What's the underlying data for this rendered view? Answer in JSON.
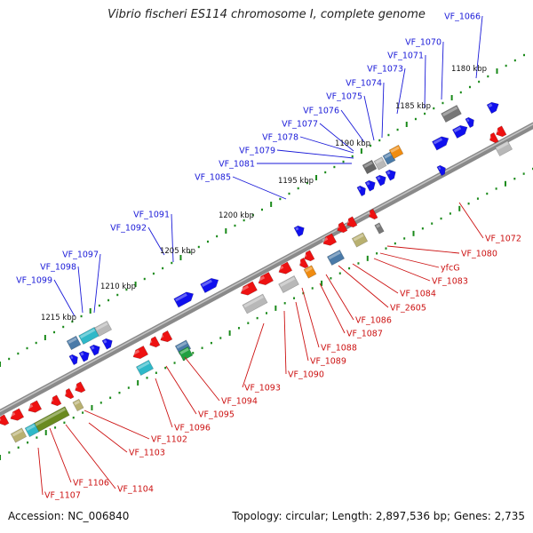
{
  "title": "Vibrio fischeri ES114 chromosome I, complete genome",
  "footer": {
    "accession": "Accession: NC_006840",
    "summary": "Topology: circular; Length: 2,897,536 bp; Genes: 2,735"
  },
  "ruler_ticks": [
    "1180 kbp",
    "1185 kbp",
    "1190 kbp",
    "1195 kbp",
    "1200 kbp",
    "1205 kbp",
    "1210 kbp",
    "1215 kbp"
  ],
  "forward_genes": [
    "VF_1066",
    "VF_1070",
    "VF_1071",
    "VF_1073",
    "VF_1074",
    "VF_1075",
    "VF_1076",
    "VF_1077",
    "VF_1078",
    "VF_1079",
    "VF_1081",
    "VF_1085",
    "VF_1091",
    "VF_1092",
    "VF_1097",
    "VF_1098",
    "VF_1099"
  ],
  "reverse_genes": [
    "VF_1072",
    "VF_1080",
    "yfcG",
    "VF_1083",
    "VF_1084",
    "VF_2605",
    "VF_1086",
    "VF_1087",
    "VF_1088",
    "VF_1089",
    "VF_1090",
    "VF_1093",
    "VF_1094",
    "VF_1095",
    "VF_1096",
    "VF_1102",
    "VF_1103",
    "VF_1104",
    "VF_1106",
    "VF_1107"
  ],
  "colors": {
    "forward": "#1010ee",
    "reverse": "#ee1111",
    "forward_label": "#1a1ad8",
    "reverse_label": "#cc1111",
    "backbone": "#888888",
    "ruler": "#1a8a1a",
    "gray_feature": "#b8b8b8",
    "khaki_feature": "#b8b070",
    "olive_feature": "#6a8a20",
    "orange_feature": "#f08c10",
    "steel_feature": "#4a7aa8",
    "teal_feature": "#2fb8c8"
  }
}
